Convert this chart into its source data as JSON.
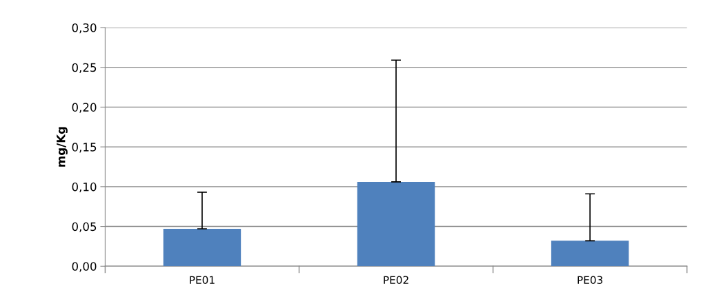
{
  "chart_data": {
    "type": "bar",
    "ylabel": "mg/Kg",
    "categories": [
      "PE01",
      "PE02",
      "PE03"
    ],
    "values": [
      0.047,
      0.106,
      0.032
    ],
    "errors": [
      [
        0.047,
        0.093
      ],
      [
        0.106,
        0.259
      ],
      [
        0.032,
        0.091
      ]
    ],
    "color": "#4f81bd",
    "ylim": [
      0,
      0.3
    ],
    "yticks": [
      {
        "value": 0,
        "label": "0,00"
      },
      {
        "value": 0.05,
        "label": "0,05"
      },
      {
        "value": 0.1,
        "label": "0,10"
      },
      {
        "value": 0.15,
        "label": "0,15"
      },
      {
        "value": 0.2,
        "label": "0,20"
      },
      {
        "value": 0.25,
        "label": "0,25"
      },
      {
        "value": 0.3,
        "label": "0,30"
      }
    ],
    "grid": "y"
  }
}
